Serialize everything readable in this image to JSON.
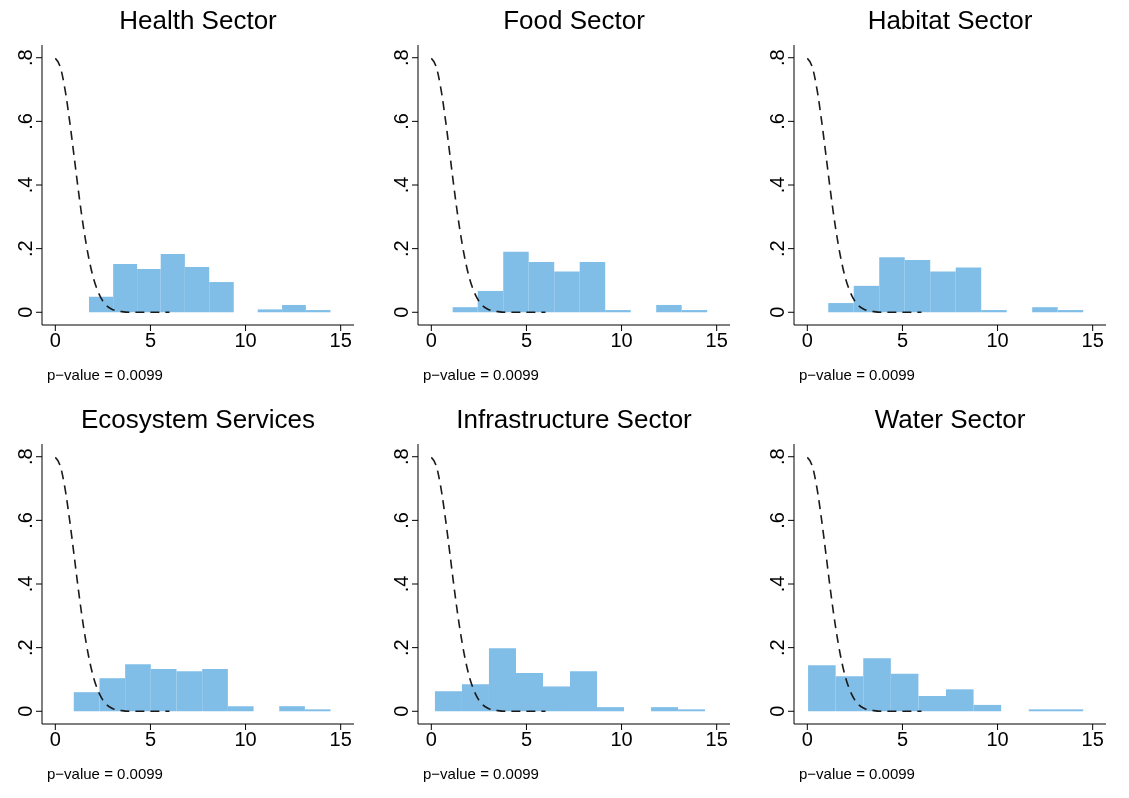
{
  "chart_data": [
    {
      "type": "histogram",
      "title": "Health Sector",
      "xlim": [
        -0.7,
        15.7
      ],
      "xticks": [
        0,
        5,
        10,
        15
      ],
      "ylim": [
        -0.04,
        0.84
      ],
      "yticks": [
        {
          "value": 0,
          "label": "0"
        },
        {
          "value": 0.2,
          "label": ".2"
        },
        {
          "value": 0.4,
          "label": ".4"
        },
        {
          "value": 0.6,
          "label": ".6"
        },
        {
          "value": 0.8,
          "label": ".8"
        }
      ],
      "annotations": [
        "p−value = 0.0099"
      ],
      "series": [
        {
          "color": "#80bee8",
          "bins": [
            1.77,
            3.04,
            4.3,
            5.54,
            6.81,
            8.09,
            9.38,
            10.64,
            11.92,
            13.17,
            14.46
          ],
          "values": [
            0.049,
            0.152,
            0.136,
            0.183,
            0.142,
            0.095,
            0,
            0.009,
            0.023,
            0.007
          ]
        },
        {
          "type": "line",
          "color": "#1a1a1a",
          "line_style": "dashed",
          "x": [
            0,
            0.25,
            0.5,
            0.75,
            1,
            1.25,
            1.5,
            1.75,
            2,
            2.25,
            2.5,
            3,
            3.5,
            4,
            5,
            6
          ],
          "values": [
            0.798,
            0.773,
            0.704,
            0.602,
            0.484,
            0.365,
            0.259,
            0.173,
            0.108,
            0.064,
            0.035,
            0.009,
            0.002,
            0,
            0,
            0
          ]
        }
      ]
    },
    {
      "type": "histogram",
      "title": "Food Sector",
      "xlim": [
        -0.7,
        15.7
      ],
      "xticks": [
        0,
        5,
        10,
        15
      ],
      "ylim": [
        -0.04,
        0.84
      ],
      "yticks": [
        {
          "value": 0,
          "label": "0"
        },
        {
          "value": 0.2,
          "label": ".2"
        },
        {
          "value": 0.4,
          "label": ".4"
        },
        {
          "value": 0.6,
          "label": ".6"
        },
        {
          "value": 0.8,
          "label": ".8"
        }
      ],
      "annotations": [
        "p−value = 0.0099"
      ],
      "series": [
        {
          "color": "#80bee8",
          "bins": [
            1.12,
            2.44,
            3.78,
            5.12,
            6.46,
            7.8,
            9.14,
            10.48,
            11.82,
            13.16,
            14.5
          ],
          "values": [
            0.016,
            0.067,
            0.19,
            0.158,
            0.128,
            0.158,
            0.007,
            0,
            0.023,
            0.007
          ]
        },
        {
          "type": "line",
          "color": "#1a1a1a",
          "line_style": "dashed",
          "x": [
            0,
            0.25,
            0.5,
            0.75,
            1,
            1.25,
            1.5,
            1.75,
            2,
            2.25,
            2.5,
            3,
            3.5,
            4,
            5,
            6
          ],
          "values": [
            0.798,
            0.773,
            0.704,
            0.602,
            0.484,
            0.365,
            0.259,
            0.173,
            0.108,
            0.064,
            0.035,
            0.009,
            0.002,
            0,
            0,
            0
          ]
        }
      ]
    },
    {
      "type": "histogram",
      "title": "Habitat Sector",
      "xlim": [
        -0.7,
        15.7
      ],
      "xticks": [
        0,
        5,
        10,
        15
      ],
      "ylim": [
        -0.04,
        0.84
      ],
      "yticks": [
        {
          "value": 0,
          "label": "0"
        },
        {
          "value": 0.2,
          "label": ".2"
        },
        {
          "value": 0.4,
          "label": ".4"
        },
        {
          "value": 0.6,
          "label": ".6"
        },
        {
          "value": 0.8,
          "label": ".8"
        }
      ],
      "annotations": [
        "p−value = 0.0099"
      ],
      "series": [
        {
          "color": "#80bee8",
          "bins": [
            1.1,
            2.44,
            3.78,
            5.12,
            6.46,
            7.8,
            9.14,
            10.48,
            11.82,
            13.16,
            14.5
          ],
          "values": [
            0.029,
            0.083,
            0.173,
            0.164,
            0.128,
            0.141,
            0.007,
            0,
            0.016,
            0.007
          ]
        },
        {
          "type": "line",
          "color": "#1a1a1a",
          "line_style": "dashed",
          "x": [
            0,
            0.25,
            0.5,
            0.75,
            1,
            1.25,
            1.5,
            1.75,
            2,
            2.25,
            2.5,
            3,
            3.5,
            4,
            5,
            6
          ],
          "values": [
            0.798,
            0.773,
            0.704,
            0.602,
            0.484,
            0.365,
            0.259,
            0.173,
            0.108,
            0.064,
            0.035,
            0.009,
            0.002,
            0,
            0,
            0
          ]
        }
      ]
    },
    {
      "type": "histogram",
      "title": "Ecosystem Services",
      "xlim": [
        -0.7,
        15.7
      ],
      "xticks": [
        0,
        5,
        10,
        15
      ],
      "ylim": [
        -0.04,
        0.84
      ],
      "yticks": [
        {
          "value": 0,
          "label": "0"
        },
        {
          "value": 0.2,
          "label": ".2"
        },
        {
          "value": 0.4,
          "label": ".4"
        },
        {
          "value": 0.6,
          "label": ".6"
        },
        {
          "value": 0.8,
          "label": ".8"
        }
      ],
      "annotations": [
        "p−value = 0.0099"
      ],
      "series": [
        {
          "color": "#80bee8",
          "bins": [
            0.97,
            2.32,
            3.67,
            5.02,
            6.37,
            7.72,
            9.07,
            10.42,
            11.77,
            13.12,
            14.47
          ],
          "values": [
            0.06,
            0.104,
            0.148,
            0.133,
            0.126,
            0.133,
            0.016,
            0,
            0.016,
            0.006
          ]
        },
        {
          "type": "line",
          "color": "#1a1a1a",
          "line_style": "dashed",
          "x": [
            0,
            0.25,
            0.5,
            0.75,
            1,
            1.25,
            1.5,
            1.75,
            2,
            2.25,
            2.5,
            3,
            3.5,
            4,
            5,
            6
          ],
          "values": [
            0.798,
            0.773,
            0.704,
            0.602,
            0.484,
            0.365,
            0.259,
            0.173,
            0.108,
            0.064,
            0.035,
            0.009,
            0.002,
            0,
            0,
            0
          ]
        }
      ]
    },
    {
      "type": "histogram",
      "title": "Infrastructure Sector",
      "xlim": [
        -0.7,
        15.7
      ],
      "xticks": [
        0,
        5,
        10,
        15
      ],
      "ylim": [
        -0.04,
        0.84
      ],
      "yticks": [
        {
          "value": 0,
          "label": "0"
        },
        {
          "value": 0.2,
          "label": ".2"
        },
        {
          "value": 0.4,
          "label": ".4"
        },
        {
          "value": 0.6,
          "label": ".6"
        },
        {
          "value": 0.8,
          "label": ".8"
        }
      ],
      "annotations": [
        "p−value = 0.0099"
      ],
      "series": [
        {
          "color": "#80bee8",
          "bins": [
            0.19,
            1.61,
            3.03,
            4.45,
            5.87,
            7.29,
            8.71,
            10.13,
            11.55,
            12.97,
            14.39
          ],
          "values": [
            0.063,
            0.085,
            0.198,
            0.12,
            0.078,
            0.126,
            0.013,
            0,
            0.013,
            0.006
          ]
        },
        {
          "type": "line",
          "color": "#1a1a1a",
          "line_style": "dashed",
          "x": [
            0,
            0.25,
            0.5,
            0.75,
            1,
            1.25,
            1.5,
            1.75,
            2,
            2.25,
            2.5,
            3,
            3.5,
            4,
            5,
            6
          ],
          "values": [
            0.798,
            0.773,
            0.704,
            0.602,
            0.484,
            0.365,
            0.259,
            0.173,
            0.108,
            0.064,
            0.035,
            0.009,
            0.002,
            0,
            0,
            0
          ]
        }
      ]
    },
    {
      "type": "histogram",
      "title": "Water Sector",
      "xlim": [
        -0.7,
        15.7
      ],
      "xticks": [
        0,
        5,
        10,
        15
      ],
      "ylim": [
        -0.04,
        0.84
      ],
      "yticks": [
        {
          "value": 0,
          "label": "0"
        },
        {
          "value": 0.2,
          "label": ".2"
        },
        {
          "value": 0.4,
          "label": ".4"
        },
        {
          "value": 0.6,
          "label": ".6"
        },
        {
          "value": 0.8,
          "label": ".8"
        }
      ],
      "annotations": [
        "p−value = 0.0099"
      ],
      "series": [
        {
          "color": "#80bee8",
          "bins": [
            0.04,
            1.49,
            2.94,
            4.39,
            5.84,
            7.29,
            8.74,
            10.19,
            11.64,
            13.07,
            14.5
          ],
          "values": [
            0.145,
            0.11,
            0.167,
            0.118,
            0.048,
            0.069,
            0.02,
            0,
            0.006,
            0.006
          ]
        },
        {
          "type": "line",
          "color": "#1a1a1a",
          "line_style": "dashed",
          "x": [
            0,
            0.25,
            0.5,
            0.75,
            1,
            1.25,
            1.5,
            1.75,
            2,
            2.25,
            2.5,
            3,
            3.5,
            4,
            5,
            6
          ],
          "values": [
            0.798,
            0.773,
            0.704,
            0.602,
            0.484,
            0.365,
            0.259,
            0.173,
            0.108,
            0.064,
            0.035,
            0.009,
            0.002,
            0,
            0,
            0
          ]
        }
      ]
    }
  ]
}
